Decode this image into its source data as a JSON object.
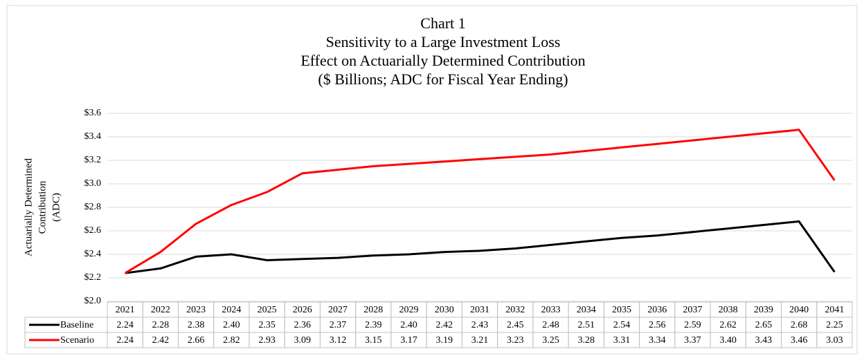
{
  "chart_data": {
    "type": "line",
    "title": [
      "Chart 1",
      "Sensitivity to a Large Investment Loss",
      "Effect on Actuarially Determined Contribution",
      "($ Billions; ADC for Fiscal Year Ending)"
    ],
    "y_label": [
      "Actuarially Determined",
      "Contribution",
      "(ADC)"
    ],
    "categories": [
      "2021",
      "2022",
      "2023",
      "2024",
      "2025",
      "2026",
      "2027",
      "2028",
      "2029",
      "2030",
      "2031",
      "2032",
      "2033",
      "2034",
      "2035",
      "2036",
      "2037",
      "2038",
      "2039",
      "2040",
      "2041"
    ],
    "series": [
      {
        "name": "Baseline",
        "color": "#000000",
        "values": [
          2.24,
          2.28,
          2.38,
          2.4,
          2.35,
          2.36,
          2.37,
          2.39,
          2.4,
          2.42,
          2.43,
          2.45,
          2.48,
          2.51,
          2.54,
          2.56,
          2.59,
          2.62,
          2.65,
          2.68,
          2.25
        ],
        "value_labels": [
          "2.24",
          "2.28",
          "2.38",
          "2.40",
          "2.35",
          "2.36",
          "2.37",
          "2.39",
          "2.40",
          "2.42",
          "2.43",
          "2.45",
          "2.48",
          "2.51",
          "2.54",
          "2.56",
          "2.59",
          "2.62",
          "2.65",
          "2.68",
          "2.25"
        ]
      },
      {
        "name": "Scenario",
        "color": "#ff0000",
        "values": [
          2.24,
          2.42,
          2.66,
          2.82,
          2.93,
          3.09,
          3.12,
          3.15,
          3.17,
          3.19,
          3.21,
          3.23,
          3.25,
          3.28,
          3.31,
          3.34,
          3.37,
          3.4,
          3.43,
          3.46,
          3.03
        ],
        "value_labels": [
          "2.24",
          "2.42",
          "2.66",
          "2.82",
          "2.93",
          "3.09",
          "3.12",
          "3.15",
          "3.17",
          "3.19",
          "3.21",
          "3.23",
          "3.25",
          "3.28",
          "3.31",
          "3.34",
          "3.37",
          "3.40",
          "3.43",
          "3.46",
          "3.03"
        ]
      }
    ],
    "ylim": [
      2.0,
      3.6
    ],
    "yticks": [
      {
        "value": 2.0,
        "label": "$2.0"
      },
      {
        "value": 2.2,
        "label": "$2.2"
      },
      {
        "value": 2.4,
        "label": "$2.4"
      },
      {
        "value": 2.6,
        "label": "$2.6"
      },
      {
        "value": 2.8,
        "label": "$2.8"
      },
      {
        "value": 3.0,
        "label": "$3.0"
      },
      {
        "value": 3.2,
        "label": "$3.2"
      },
      {
        "value": 3.4,
        "label": "$3.4"
      },
      {
        "value": 3.6,
        "label": "$3.6"
      }
    ],
    "grid": true
  }
}
